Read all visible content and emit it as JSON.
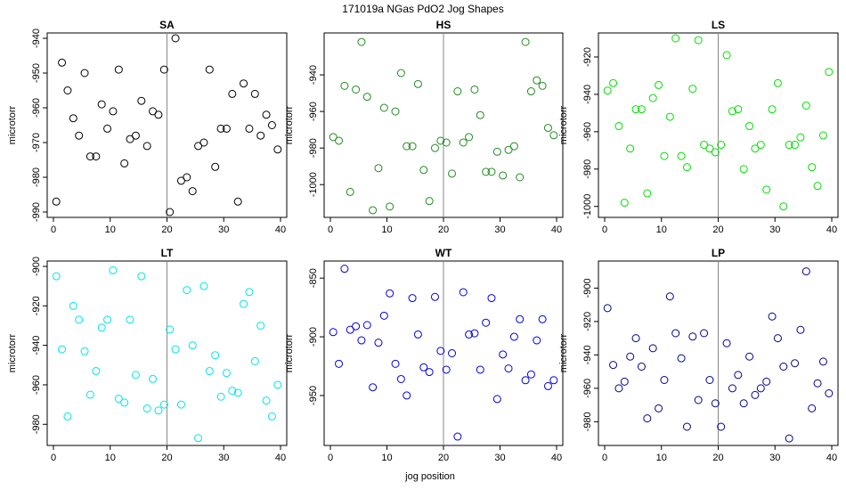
{
  "figure": {
    "title": "171019a   NGas PdO2 Jog Shapes",
    "xlabel": "jog position",
    "ylabel": "microtorr"
  },
  "chart_data": [
    {
      "type": "scatter",
      "title": "SA",
      "color": "#000000",
      "xlim": [
        0,
        40
      ],
      "ylim": [
        -990,
        -940
      ],
      "xticks": [
        0,
        10,
        20,
        30,
        40
      ],
      "yticks": [
        -940,
        -950,
        -960,
        -970,
        -980,
        -990
      ],
      "vline": 20,
      "x": [
        0.5,
        1.5,
        2.5,
        3.5,
        4.5,
        5.5,
        6.5,
        7.5,
        8.5,
        9.5,
        10.5,
        11.5,
        12.5,
        13.5,
        14.5,
        15.5,
        16.5,
        17.5,
        18.5,
        19.5,
        20.5,
        21.5,
        22.5,
        23.5,
        24.5,
        25.5,
        26.5,
        27.5,
        28.5,
        29.5,
        30.5,
        31.5,
        32.5,
        33.5,
        34.5,
        35.5,
        36.5,
        37.5,
        38.5,
        39.5
      ],
      "y": [
        -987,
        -947,
        -955,
        -963,
        -968,
        -950,
        -974,
        -974,
        -959,
        -966,
        -961,
        -949,
        -976,
        -969,
        -968,
        -958,
        -971,
        -961,
        -962,
        -949,
        -990,
        -940,
        -981,
        -980,
        -984,
        -971,
        -970,
        -949,
        -977,
        -966,
        -966,
        -956,
        -987,
        -953,
        -966,
        -956,
        -968,
        -962,
        -965,
        -972
      ]
    },
    {
      "type": "scatter",
      "title": "HS",
      "color": "#228b22",
      "xlim": [
        0,
        40
      ],
      "ylim": [
        -1015,
        -920
      ],
      "xticks": [
        0,
        10,
        20,
        30,
        40
      ],
      "yticks": [
        -940,
        -960,
        -980,
        -1000
      ],
      "vline": 20,
      "x": [
        0.5,
        1.5,
        2.5,
        3.5,
        4.5,
        5.5,
        6.5,
        7.5,
        8.5,
        9.5,
        10.5,
        11.5,
        12.5,
        13.5,
        14.5,
        15.5,
        16.5,
        17.5,
        18.5,
        19.5,
        20.5,
        21.5,
        22.5,
        23.5,
        24.5,
        25.5,
        26.5,
        27.5,
        28.5,
        29.5,
        30.5,
        31.5,
        32.5,
        33.5,
        34.5,
        35.5,
        36.5,
        37.5,
        38.5,
        39.5
      ],
      "y": [
        -974,
        -976,
        -946,
        -1004,
        -948,
        -922,
        -952,
        -1014,
        -991,
        -958,
        -1012,
        -960,
        -939,
        -979,
        -979,
        -945,
        -992,
        -1009,
        -980,
        -976,
        -977,
        -994,
        -949,
        -977,
        -974,
        -948,
        -962,
        -993,
        -993,
        -982,
        -995,
        -981,
        -979,
        -996,
        -922,
        -949,
        -943,
        -946,
        -969,
        -973
      ]
    },
    {
      "type": "scatter",
      "title": "LS",
      "color": "#00e000",
      "xlim": [
        0,
        40
      ],
      "ylim": [
        -1003,
        -910
      ],
      "xticks": [
        0,
        10,
        20,
        30,
        40
      ],
      "yticks": [
        -920,
        -940,
        -960,
        -980,
        -1000
      ],
      "vline": 20,
      "x": [
        0.5,
        1.5,
        2.5,
        3.5,
        4.5,
        5.5,
        6.5,
        7.5,
        8.5,
        9.5,
        10.5,
        11.5,
        12.5,
        13.5,
        14.5,
        15.5,
        16.5,
        17.5,
        18.5,
        19.5,
        20.5,
        21.5,
        22.5,
        23.5,
        24.5,
        25.5,
        26.5,
        27.5,
        28.5,
        29.5,
        30.5,
        31.5,
        32.5,
        33.5,
        34.5,
        35.5,
        36.5,
        37.5,
        38.5,
        39.5
      ],
      "y": [
        -938,
        -934,
        -957,
        -998,
        -969,
        -948,
        -948,
        -993,
        -942,
        -935,
        -973,
        -952,
        -910,
        -973,
        -979,
        -937,
        -911,
        -967,
        -969,
        -971,
        -967,
        -919,
        -949,
        -948,
        -980,
        -957,
        -969,
        -967,
        -991,
        -948,
        -934,
        -1000,
        -967,
        -967,
        -963,
        -946,
        -979,
        -989,
        -962,
        -928
      ]
    },
    {
      "type": "scatter",
      "title": "LT",
      "color": "#00e5e5",
      "xlim": [
        0,
        40
      ],
      "ylim": [
        -988,
        -900
      ],
      "xticks": [
        0,
        10,
        20,
        30,
        40
      ],
      "yticks": [
        -900,
        -920,
        -940,
        -960,
        -980
      ],
      "vline": 20,
      "x": [
        0.5,
        1.5,
        2.5,
        3.5,
        4.5,
        5.5,
        6.5,
        7.5,
        8.5,
        9.5,
        10.5,
        11.5,
        12.5,
        13.5,
        14.5,
        15.5,
        16.5,
        17.5,
        18.5,
        19.5,
        20.5,
        21.5,
        22.5,
        23.5,
        24.5,
        25.5,
        26.5,
        27.5,
        28.5,
        29.5,
        30.5,
        31.5,
        32.5,
        33.5,
        34.5,
        35.5,
        36.5,
        37.5,
        38.5,
        39.5
      ],
      "y": [
        -905,
        -942,
        -976,
        -920,
        -927,
        -943,
        -965,
        -953,
        -931,
        -927,
        -902,
        -967,
        -969,
        -927,
        -955,
        -905,
        -972,
        -957,
        -973,
        -970,
        -932,
        -942,
        -970,
        -912,
        -940,
        -987,
        -910,
        -953,
        -945,
        -966,
        -954,
        -963,
        -964,
        -919,
        -913,
        -948,
        -930,
        -968,
        -976,
        -960
      ]
    },
    {
      "type": "scatter",
      "title": "WT",
      "color": "#0000e0",
      "xlim": [
        0,
        40
      ],
      "ylim": [
        -988,
        -840
      ],
      "xticks": [
        0,
        10,
        20,
        30,
        40
      ],
      "yticks": [
        -850,
        -900,
        -950
      ],
      "vline": 20,
      "x": [
        0.5,
        1.5,
        2.5,
        3.5,
        4.5,
        5.5,
        6.5,
        7.5,
        8.5,
        9.5,
        10.5,
        11.5,
        12.5,
        13.5,
        14.5,
        15.5,
        16.5,
        17.5,
        18.5,
        19.5,
        20.5,
        21.5,
        22.5,
        23.5,
        24.5,
        25.5,
        26.5,
        27.5,
        28.5,
        29.5,
        30.5,
        31.5,
        32.5,
        33.5,
        34.5,
        35.5,
        36.5,
        37.5,
        38.5,
        39.5
      ],
      "y": [
        -896,
        -923,
        -842,
        -894,
        -891,
        -903,
        -890,
        -943,
        -905,
        -882,
        -863,
        -923,
        -936,
        -950,
        -867,
        -898,
        -926,
        -930,
        -866,
        -912,
        -928,
        -914,
        -985,
        -862,
        -898,
        -897,
        -928,
        -888,
        -867,
        -953,
        -915,
        -927,
        -900,
        -885,
        -937,
        -932,
        -903,
        -885,
        -942,
        -937
      ]
    },
    {
      "type": "scatter",
      "title": "LP",
      "color": "#00008b",
      "xlim": [
        0,
        40
      ],
      "ylim": [
        -991,
        -887
      ],
      "xticks": [
        0,
        10,
        20,
        30,
        40
      ],
      "yticks": [
        -900,
        -920,
        -940,
        -960,
        -980
      ],
      "vline": 20,
      "x": [
        0.5,
        1.5,
        2.5,
        3.5,
        4.5,
        5.5,
        6.5,
        7.5,
        8.5,
        9.5,
        10.5,
        11.5,
        12.5,
        13.5,
        14.5,
        15.5,
        16.5,
        17.5,
        18.5,
        19.5,
        20.5,
        21.5,
        22.5,
        23.5,
        24.5,
        25.5,
        26.5,
        27.5,
        28.5,
        29.5,
        30.5,
        31.5,
        32.5,
        33.5,
        34.5,
        35.5,
        36.5,
        37.5,
        38.5,
        39.5
      ],
      "y": [
        -912,
        -946,
        -960,
        -956,
        -941,
        -930,
        -947,
        -978,
        -936,
        -972,
        -955,
        -905,
        -927,
        -942,
        -983,
        -929,
        -967,
        -927,
        -955,
        -969,
        -983,
        -933,
        -960,
        -952,
        -969,
        -941,
        -964,
        -960,
        -956,
        -917,
        -930,
        -947,
        -990,
        -945,
        -925,
        -890,
        -972,
        -957,
        -944,
        -963
      ]
    }
  ]
}
